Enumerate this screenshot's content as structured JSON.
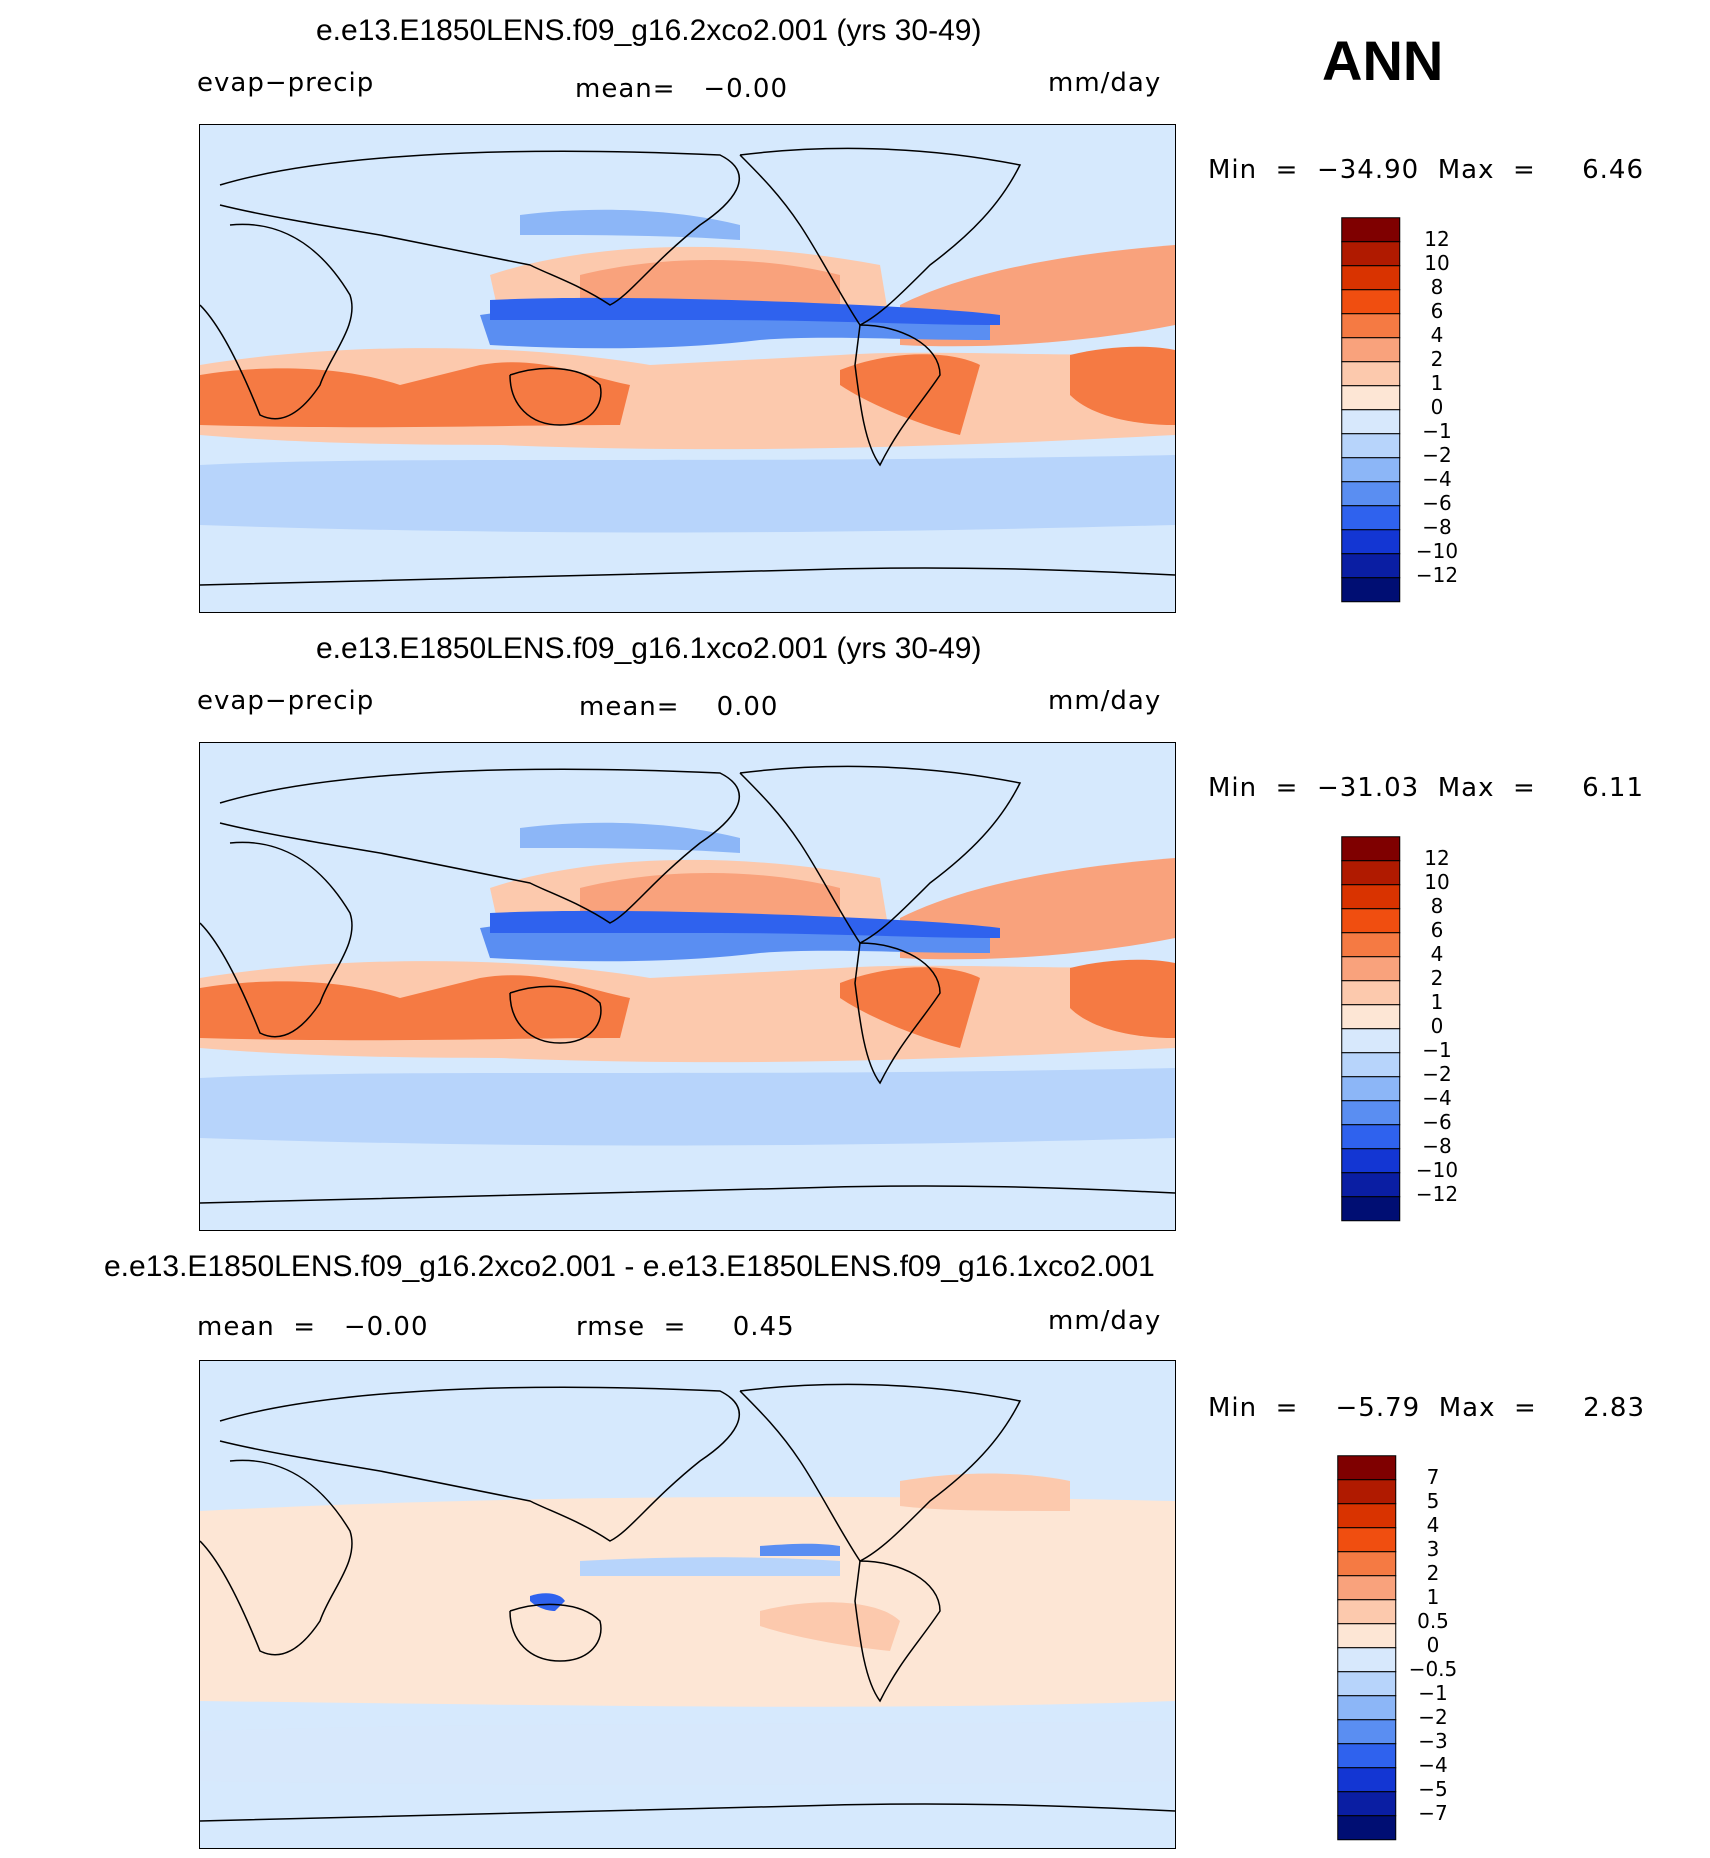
{
  "season": "ANN",
  "panels": [
    {
      "title": "e.e13.E1850LENS.f09_g16.2xco2.001 (yrs 30-49)",
      "left_label": "evap−precip",
      "center_label": "mean=   −0.00",
      "units": "mm/day",
      "min_max": "Min  =  −34.90  Max  =     6.46",
      "colorbar": {
        "labels": [
          "12",
          "10",
          "8",
          "6",
          "4",
          "2",
          "1",
          "0",
          "−1",
          "−2",
          "−4",
          "−6",
          "−8",
          "−10",
          "−12"
        ]
      }
    },
    {
      "title": "e.e13.E1850LENS.f09_g16.1xco2.001 (yrs 30-49)",
      "left_label": "evap−precip",
      "center_label": "mean=    0.00",
      "units": "mm/day",
      "min_max": "Min  =  −31.03  Max  =     6.11",
      "colorbar": {
        "labels": [
          "12",
          "10",
          "8",
          "6",
          "4",
          "2",
          "1",
          "0",
          "−1",
          "−2",
          "−4",
          "−6",
          "−8",
          "−10",
          "−12"
        ]
      }
    },
    {
      "title": "e.e13.E1850LENS.f09_g16.2xco2.001 - e.e13.E1850LENS.f09_g16.1xco2.001",
      "left_label": "mean  =   −0.00",
      "center_label": "rmse  =     0.45",
      "units": "mm/day",
      "min_max": "Min  =    −5.79  Max  =     2.83",
      "colorbar": {
        "labels": [
          "7",
          "5",
          "4",
          "3",
          "2",
          "1",
          "0.5",
          "0",
          "−0.5",
          "−1",
          "−2",
          "−3",
          "−4",
          "−5",
          "−7"
        ]
      }
    }
  ],
  "colors": {
    "levels_main": [
      "#7f0000",
      "#b01a00",
      "#d93300",
      "#f04e10",
      "#f57a43",
      "#f9a27c",
      "#fcc9ad",
      "#fde6d5",
      "#d7e8fc",
      "#b7d4fb",
      "#8cb6f7",
      "#5a8ef2",
      "#2f62ee",
      "#1336d3",
      "#0a1ea3",
      "#000e73"
    ],
    "levels_diff": [
      "#7f0000",
      "#b01a00",
      "#d93300",
      "#f04e10",
      "#f57a43",
      "#f9a27c",
      "#fcc9ad",
      "#fde6d5",
      "#d7e8fc",
      "#b7d4fb",
      "#8cb6f7",
      "#5a8ef2",
      "#2f62ee",
      "#1336d3",
      "#0a1ea3",
      "#000e73"
    ]
  },
  "chart_data": [
    {
      "type": "heatmap",
      "title": "e.e13.E1850LENS.f09_g16.2xco2.001 (yrs 30-49)",
      "variable": "evap−precip",
      "units": "mm/day",
      "mean": -0.0,
      "min": -34.9,
      "max": 6.46,
      "levels": [
        -12,
        -10,
        -8,
        -6,
        -4,
        -2,
        -1,
        0,
        1,
        2,
        4,
        6,
        8,
        10,
        12
      ]
    },
    {
      "type": "heatmap",
      "title": "e.e13.E1850LENS.f09_g16.1xco2.001 (yrs 30-49)",
      "variable": "evap−precip",
      "units": "mm/day",
      "mean": 0.0,
      "min": -31.03,
      "max": 6.11,
      "levels": [
        -12,
        -10,
        -8,
        -6,
        -4,
        -2,
        -1,
        0,
        1,
        2,
        4,
        6,
        8,
        10,
        12
      ]
    },
    {
      "type": "heatmap",
      "title": "e.e13.E1850LENS.f09_g16.2xco2.001 - e.e13.E1850LENS.f09_g16.1xco2.001",
      "units": "mm/day",
      "mean": -0.0,
      "rmse": 0.45,
      "min": -5.79,
      "max": 2.83,
      "levels": [
        -7,
        -5,
        -4,
        -3,
        -2,
        -1,
        -0.5,
        0,
        0.5,
        1,
        2,
        3,
        4,
        5,
        7
      ]
    }
  ]
}
